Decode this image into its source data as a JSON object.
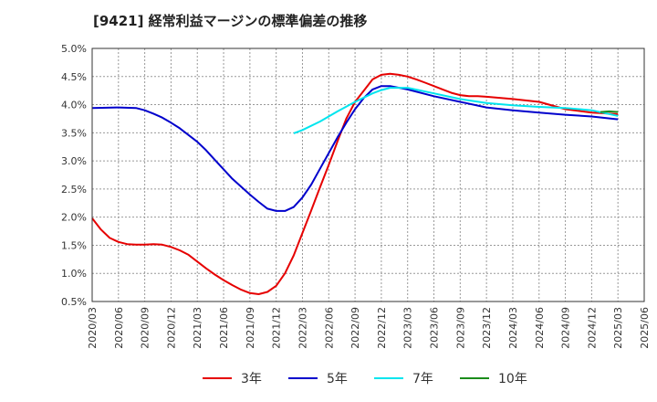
{
  "title": "[9421]  経常利益マージンの標準偏差の推移",
  "chart_data": {
    "type": "line",
    "title": "[9421]  経常利益マージンの標準偏差の推移",
    "xlabel": "",
    "ylabel": "",
    "ylim": [
      0.5,
      5.0
    ],
    "yticks": [
      "0.5%",
      "1.0%",
      "1.5%",
      "2.0%",
      "2.5%",
      "3.0%",
      "3.5%",
      "4.0%",
      "4.5%",
      "5.0%"
    ],
    "xticks": [
      "2020/03",
      "2020/06",
      "2020/09",
      "2020/12",
      "2021/03",
      "2021/06",
      "2021/09",
      "2021/12",
      "2022/03",
      "2022/06",
      "2022/09",
      "2022/12",
      "2023/03",
      "2023/06",
      "2023/09",
      "2023/12",
      "2024/03",
      "2024/06",
      "2024/09",
      "2024/12",
      "2025/03",
      "2025/06"
    ],
    "grid": true,
    "legend_position": "bottom",
    "series": [
      {
        "name": "3年",
        "color": "#e60000",
        "x": [
          "2020/03",
          "2020/04",
          "2020/05",
          "2020/06",
          "2020/07",
          "2020/08",
          "2020/09",
          "2020/10",
          "2020/11",
          "2020/12",
          "2021/01",
          "2021/02",
          "2021/03",
          "2021/04",
          "2021/05",
          "2021/06",
          "2021/07",
          "2021/08",
          "2021/09",
          "2021/10",
          "2021/11",
          "2021/12",
          "2022/01",
          "2022/02",
          "2022/03",
          "2022/04",
          "2022/05",
          "2022/06",
          "2022/07",
          "2022/08",
          "2022/09",
          "2022/10",
          "2022/11",
          "2022/12",
          "2023/01",
          "2023/02",
          "2023/03",
          "2023/04",
          "2023/05",
          "2023/06",
          "2023/07",
          "2023/08",
          "2023/09",
          "2023/10",
          "2023/11",
          "2023/12",
          "2024/03",
          "2024/06",
          "2024/09",
          "2024/12",
          "2025/01",
          "2025/02",
          "2025/03"
        ],
        "y": [
          1.98,
          1.78,
          1.63,
          1.56,
          1.52,
          1.51,
          1.51,
          1.52,
          1.51,
          1.47,
          1.41,
          1.33,
          1.21,
          1.09,
          0.98,
          0.88,
          0.79,
          0.71,
          0.65,
          0.63,
          0.67,
          0.78,
          1.0,
          1.32,
          1.72,
          2.12,
          2.53,
          2.93,
          3.35,
          3.75,
          4.05,
          4.25,
          4.45,
          4.53,
          4.55,
          4.53,
          4.5,
          4.45,
          4.39,
          4.33,
          4.27,
          4.21,
          4.17,
          4.15,
          4.15,
          4.14,
          4.1,
          4.05,
          3.92,
          3.86,
          3.85,
          3.84,
          3.83
        ]
      },
      {
        "name": "5年",
        "color": "#0000cc",
        "x": [
          "2020/03",
          "2020/06",
          "2020/08",
          "2020/09",
          "2020/10",
          "2020/11",
          "2020/12",
          "2021/01",
          "2021/02",
          "2021/03",
          "2021/04",
          "2021/05",
          "2021/06",
          "2021/07",
          "2021/08",
          "2021/09",
          "2021/10",
          "2021/11",
          "2021/12",
          "2022/01",
          "2022/02",
          "2022/03",
          "2022/04",
          "2022/05",
          "2022/06",
          "2022/07",
          "2022/08",
          "2022/09",
          "2022/10",
          "2022/11",
          "2022/12",
          "2023/01",
          "2023/03",
          "2023/06",
          "2023/09",
          "2023/12",
          "2024/03",
          "2024/06",
          "2024/09",
          "2024/12",
          "2025/03"
        ],
        "y": [
          3.94,
          3.95,
          3.94,
          3.9,
          3.84,
          3.77,
          3.68,
          3.58,
          3.46,
          3.34,
          3.19,
          3.02,
          2.85,
          2.68,
          2.54,
          2.4,
          2.27,
          2.15,
          2.11,
          2.11,
          2.18,
          2.35,
          2.58,
          2.86,
          3.14,
          3.42,
          3.68,
          3.92,
          4.12,
          4.27,
          4.33,
          4.33,
          4.27,
          4.15,
          4.05,
          3.95,
          3.9,
          3.86,
          3.82,
          3.79,
          3.74
        ]
      },
      {
        "name": "7年",
        "color": "#00e5ee",
        "x": [
          "2022/02",
          "2022/03",
          "2022/05",
          "2022/07",
          "2022/09",
          "2022/11",
          "2022/12",
          "2023/01",
          "2023/03",
          "2023/06",
          "2023/09",
          "2023/12",
          "2024/03",
          "2024/06",
          "2024/09",
          "2024/12",
          "2025/03"
        ],
        "y": [
          3.49,
          3.55,
          3.7,
          3.88,
          4.05,
          4.2,
          4.26,
          4.3,
          4.3,
          4.2,
          4.1,
          4.03,
          3.99,
          3.96,
          3.94,
          3.9,
          3.8
        ]
      },
      {
        "name": "10年",
        "color": "#1b8c1b",
        "x": [
          "2025/01",
          "2025/02",
          "2025/03"
        ],
        "y": [
          3.87,
          3.88,
          3.87
        ]
      }
    ]
  }
}
